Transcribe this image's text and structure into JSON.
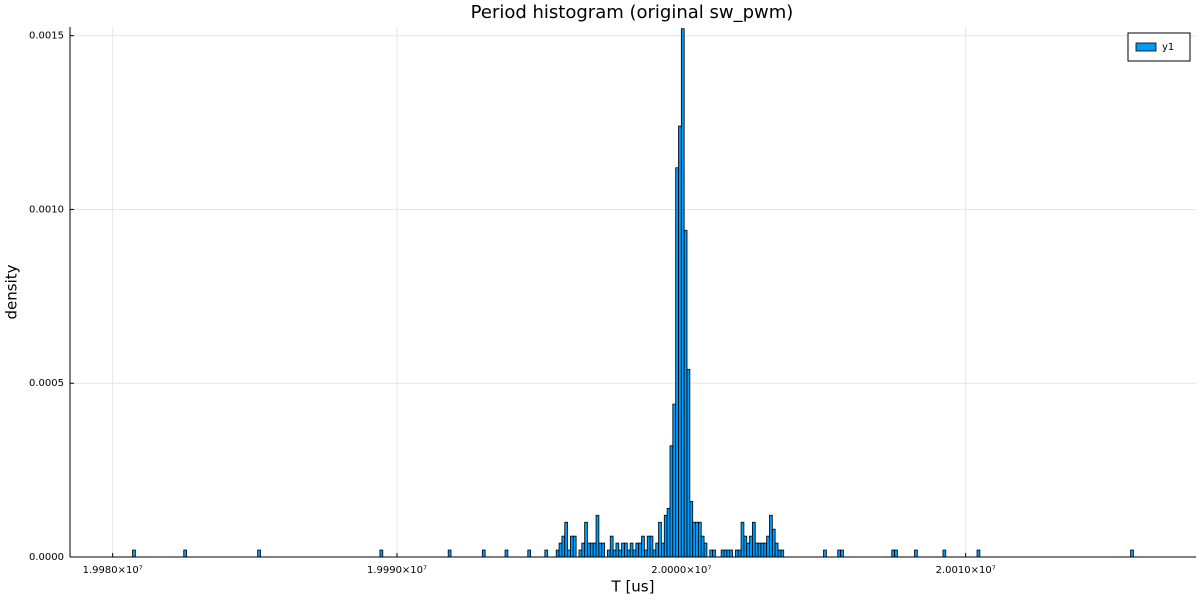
{
  "chart_data": {
    "type": "histogram",
    "title": "Period histogram (original sw_pwm)",
    "x_label": "T [us]",
    "y_label": "density",
    "color": "#009af9",
    "grid": true,
    "legend": "top-right",
    "series_name": "y1",
    "xlim": [
      19978500,
      20018100
    ],
    "ylim": [
      0,
      0.001525
    ],
    "xticks": [
      {
        "value": 19980000,
        "label": "1.9980×10⁷"
      },
      {
        "value": 19990000,
        "label": "1.9990×10⁷"
      },
      {
        "value": 20000000,
        "label": "2.0000×10⁷"
      },
      {
        "value": 20010000,
        "label": "2.0010×10⁷"
      }
    ],
    "yticks": [
      {
        "value": 0,
        "label": "0.0000"
      },
      {
        "value": 0.0005,
        "label": "0.0005"
      },
      {
        "value": 0.001,
        "label": "0.0010"
      },
      {
        "value": 0.0015,
        "label": "0.0015"
      }
    ],
    "bins": [
      19980700,
      19980800,
      19982500,
      19982600,
      19985100,
      19985200,
      19989400,
      19989500,
      19991800,
      19991900,
      19993000,
      19993100,
      19993800,
      19993900,
      19994600,
      19994700,
      19995200,
      19995300,
      19995600,
      19995700,
      19995800,
      19995900,
      19996000,
      19996100,
      19996200,
      19996300,
      19996400,
      19996500,
      19996600,
      19996700,
      19996800,
      19996900,
      19997000,
      19997100,
      19997200,
      19997300,
      19997400,
      19997500,
      19997600,
      19997700,
      19997800,
      19997900,
      19998000,
      19998100,
      19998200,
      19998300,
      19998400,
      19998500,
      19998600,
      19998700,
      19998800,
      19998900,
      19999000,
      19999100,
      19999200,
      19999300,
      19999400,
      19999500,
      19999600,
      19999700,
      19999800,
      19999900,
      20000000,
      20000100,
      20000200,
      20000300,
      20000400,
      20000500,
      20000600,
      20000700,
      20000800,
      20000900,
      20001000,
      20001100,
      20001200,
      20001300,
      20001400,
      20001500,
      20001600,
      20001700,
      20001800,
      20001900,
      20002000,
      20002100,
      20002200,
      20002300,
      20002400,
      20002500,
      20002600,
      20002700,
      20002800,
      20002900,
      20003000,
      20003100,
      20003200,
      20003300,
      20003400,
      20003500,
      20003600,
      20003700,
      20005000,
      20005100,
      20005500,
      20005600,
      20005700,
      20007400,
      20007500,
      20007600,
      20008200,
      20008300,
      20009200,
      20009300,
      20010400,
      20010500,
      20015800,
      20015900
    ],
    "values": [
      2e-05,
      0,
      2e-05,
      0,
      2e-05,
      0,
      2e-05,
      0,
      2e-05,
      0,
      2e-05,
      0,
      2e-05,
      0,
      2e-05,
      0,
      2e-05,
      0,
      2e-05,
      4e-05,
      6e-05,
      0.0001,
      2e-05,
      6e-05,
      6e-05,
      0,
      2e-05,
      4e-05,
      0.0001,
      4e-05,
      4e-05,
      4e-05,
      0.00012,
      4e-05,
      4e-05,
      0,
      2e-05,
      6e-05,
      2e-05,
      4e-05,
      2e-05,
      4e-05,
      4e-05,
      2e-05,
      4e-05,
      2e-05,
      4e-05,
      4e-05,
      6e-05,
      2e-05,
      6e-05,
      6e-05,
      2e-05,
      4e-05,
      0.0001,
      4e-05,
      0.00012,
      0.00014,
      0.00032,
      0.00044,
      0.00112,
      0.00124,
      0.00152,
      0.00094,
      0.00054,
      0.00016,
      0.0001,
      0.0001,
      0.0001,
      6e-05,
      4e-05,
      0,
      2e-05,
      2e-05,
      0,
      0,
      2e-05,
      2e-05,
      2e-05,
      2e-05,
      0,
      2e-05,
      2e-05,
      0.0001,
      6e-05,
      4e-05,
      6e-05,
      0.0001,
      4e-05,
      4e-05,
      4e-05,
      4e-05,
      6e-05,
      0.00012,
      8e-05,
      4e-05,
      2e-05,
      2e-05,
      0,
      0,
      2e-05,
      0,
      2e-05,
      2e-05,
      0,
      2e-05,
      2e-05,
      0,
      2e-05,
      0,
      2e-05,
      0,
      2e-05,
      0,
      2e-05
    ]
  }
}
